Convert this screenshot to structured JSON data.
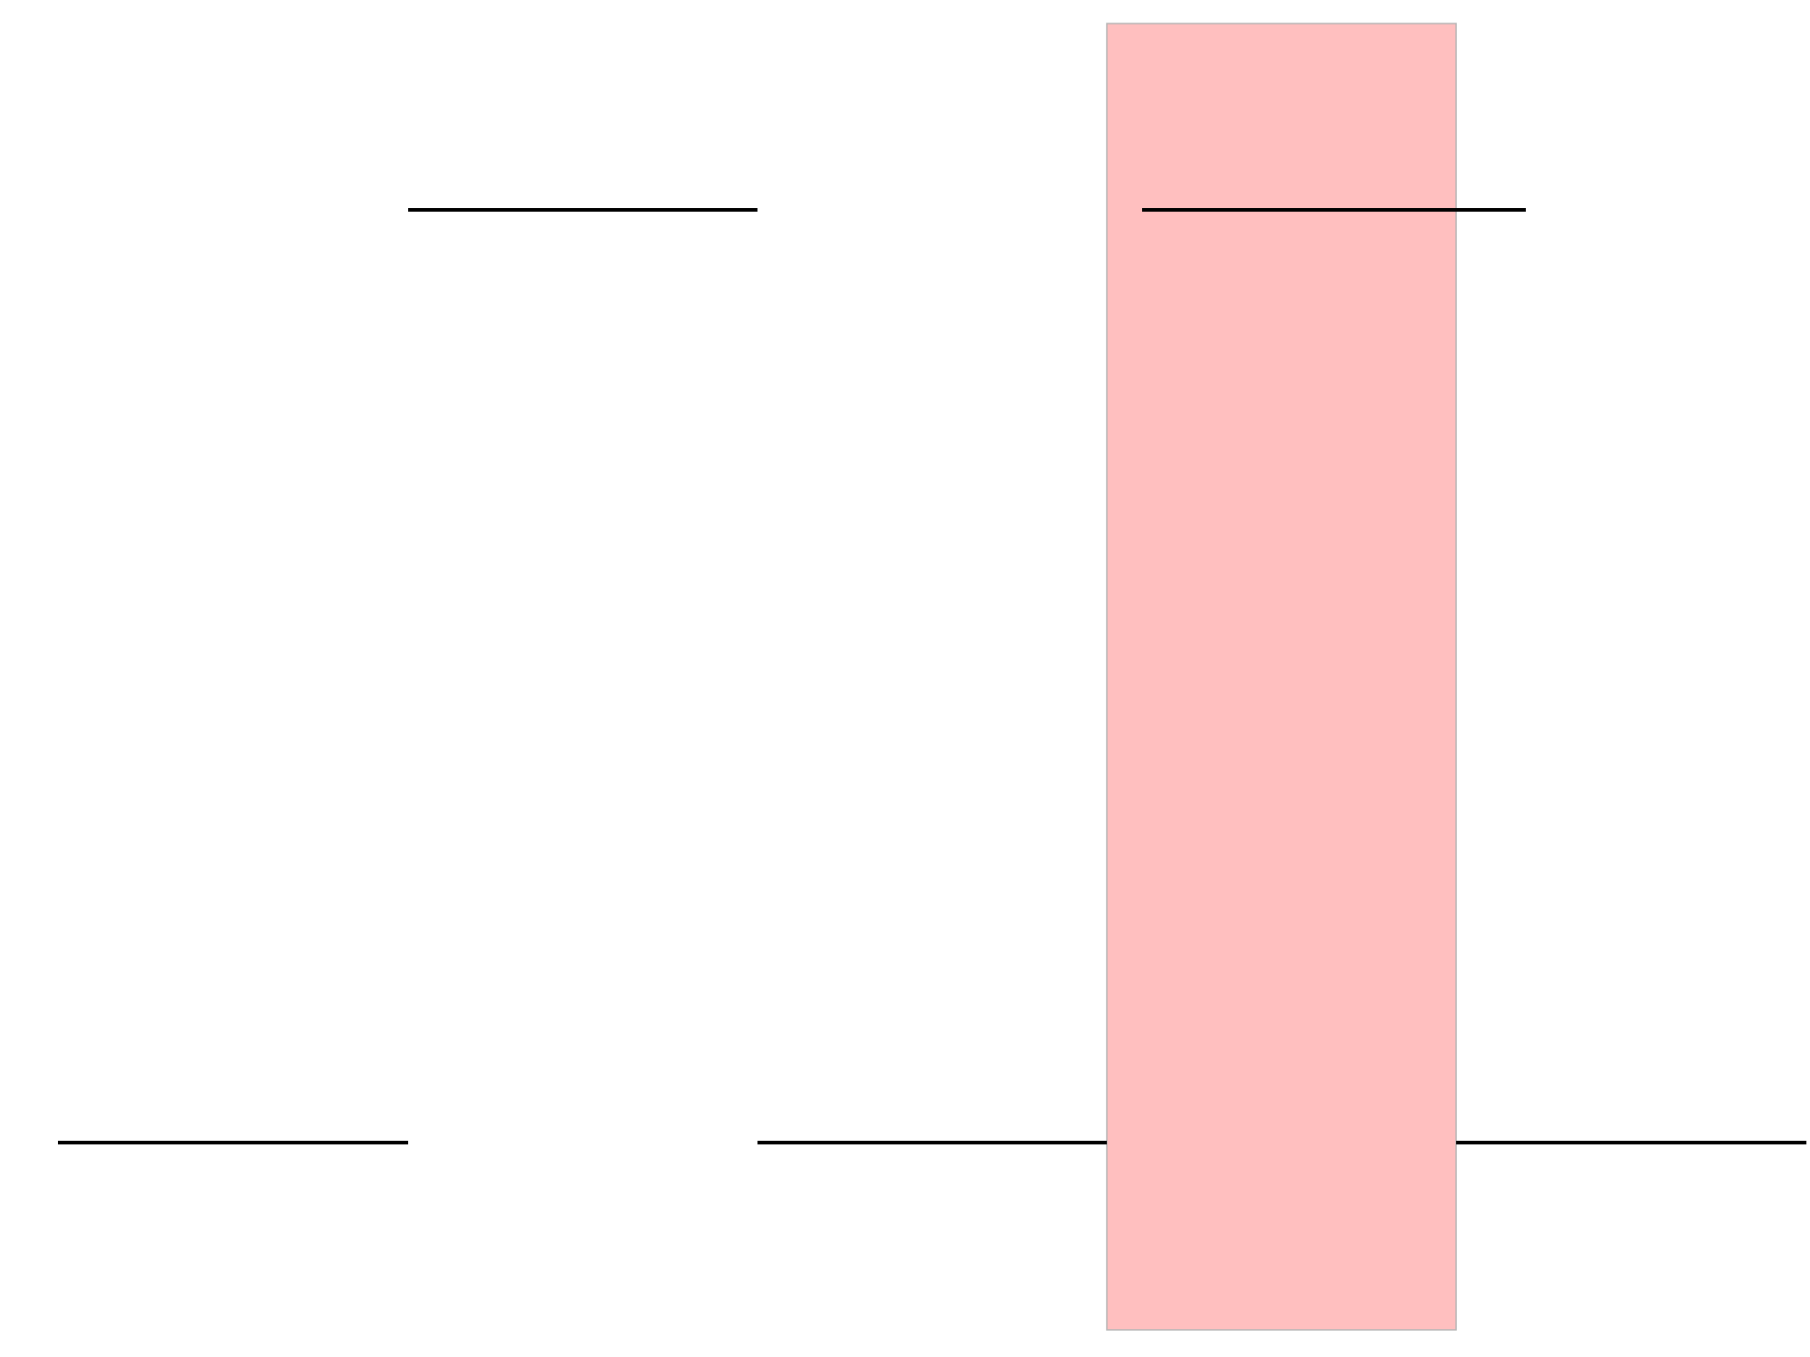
{
  "diagram": {
    "background_color": "#ffffff",
    "line_color": "#000000",
    "highlight": {
      "fill_color": "#ffbfbf",
      "stroke_color": "#b3b3b3"
    },
    "signal_levels": [
      "high",
      "low"
    ],
    "segments": [
      {
        "level": "low"
      },
      {
        "level": "high"
      },
      {
        "level": "low"
      },
      {
        "level": "low",
        "highlighted": true
      },
      {
        "level": "high"
      }
    ]
  }
}
